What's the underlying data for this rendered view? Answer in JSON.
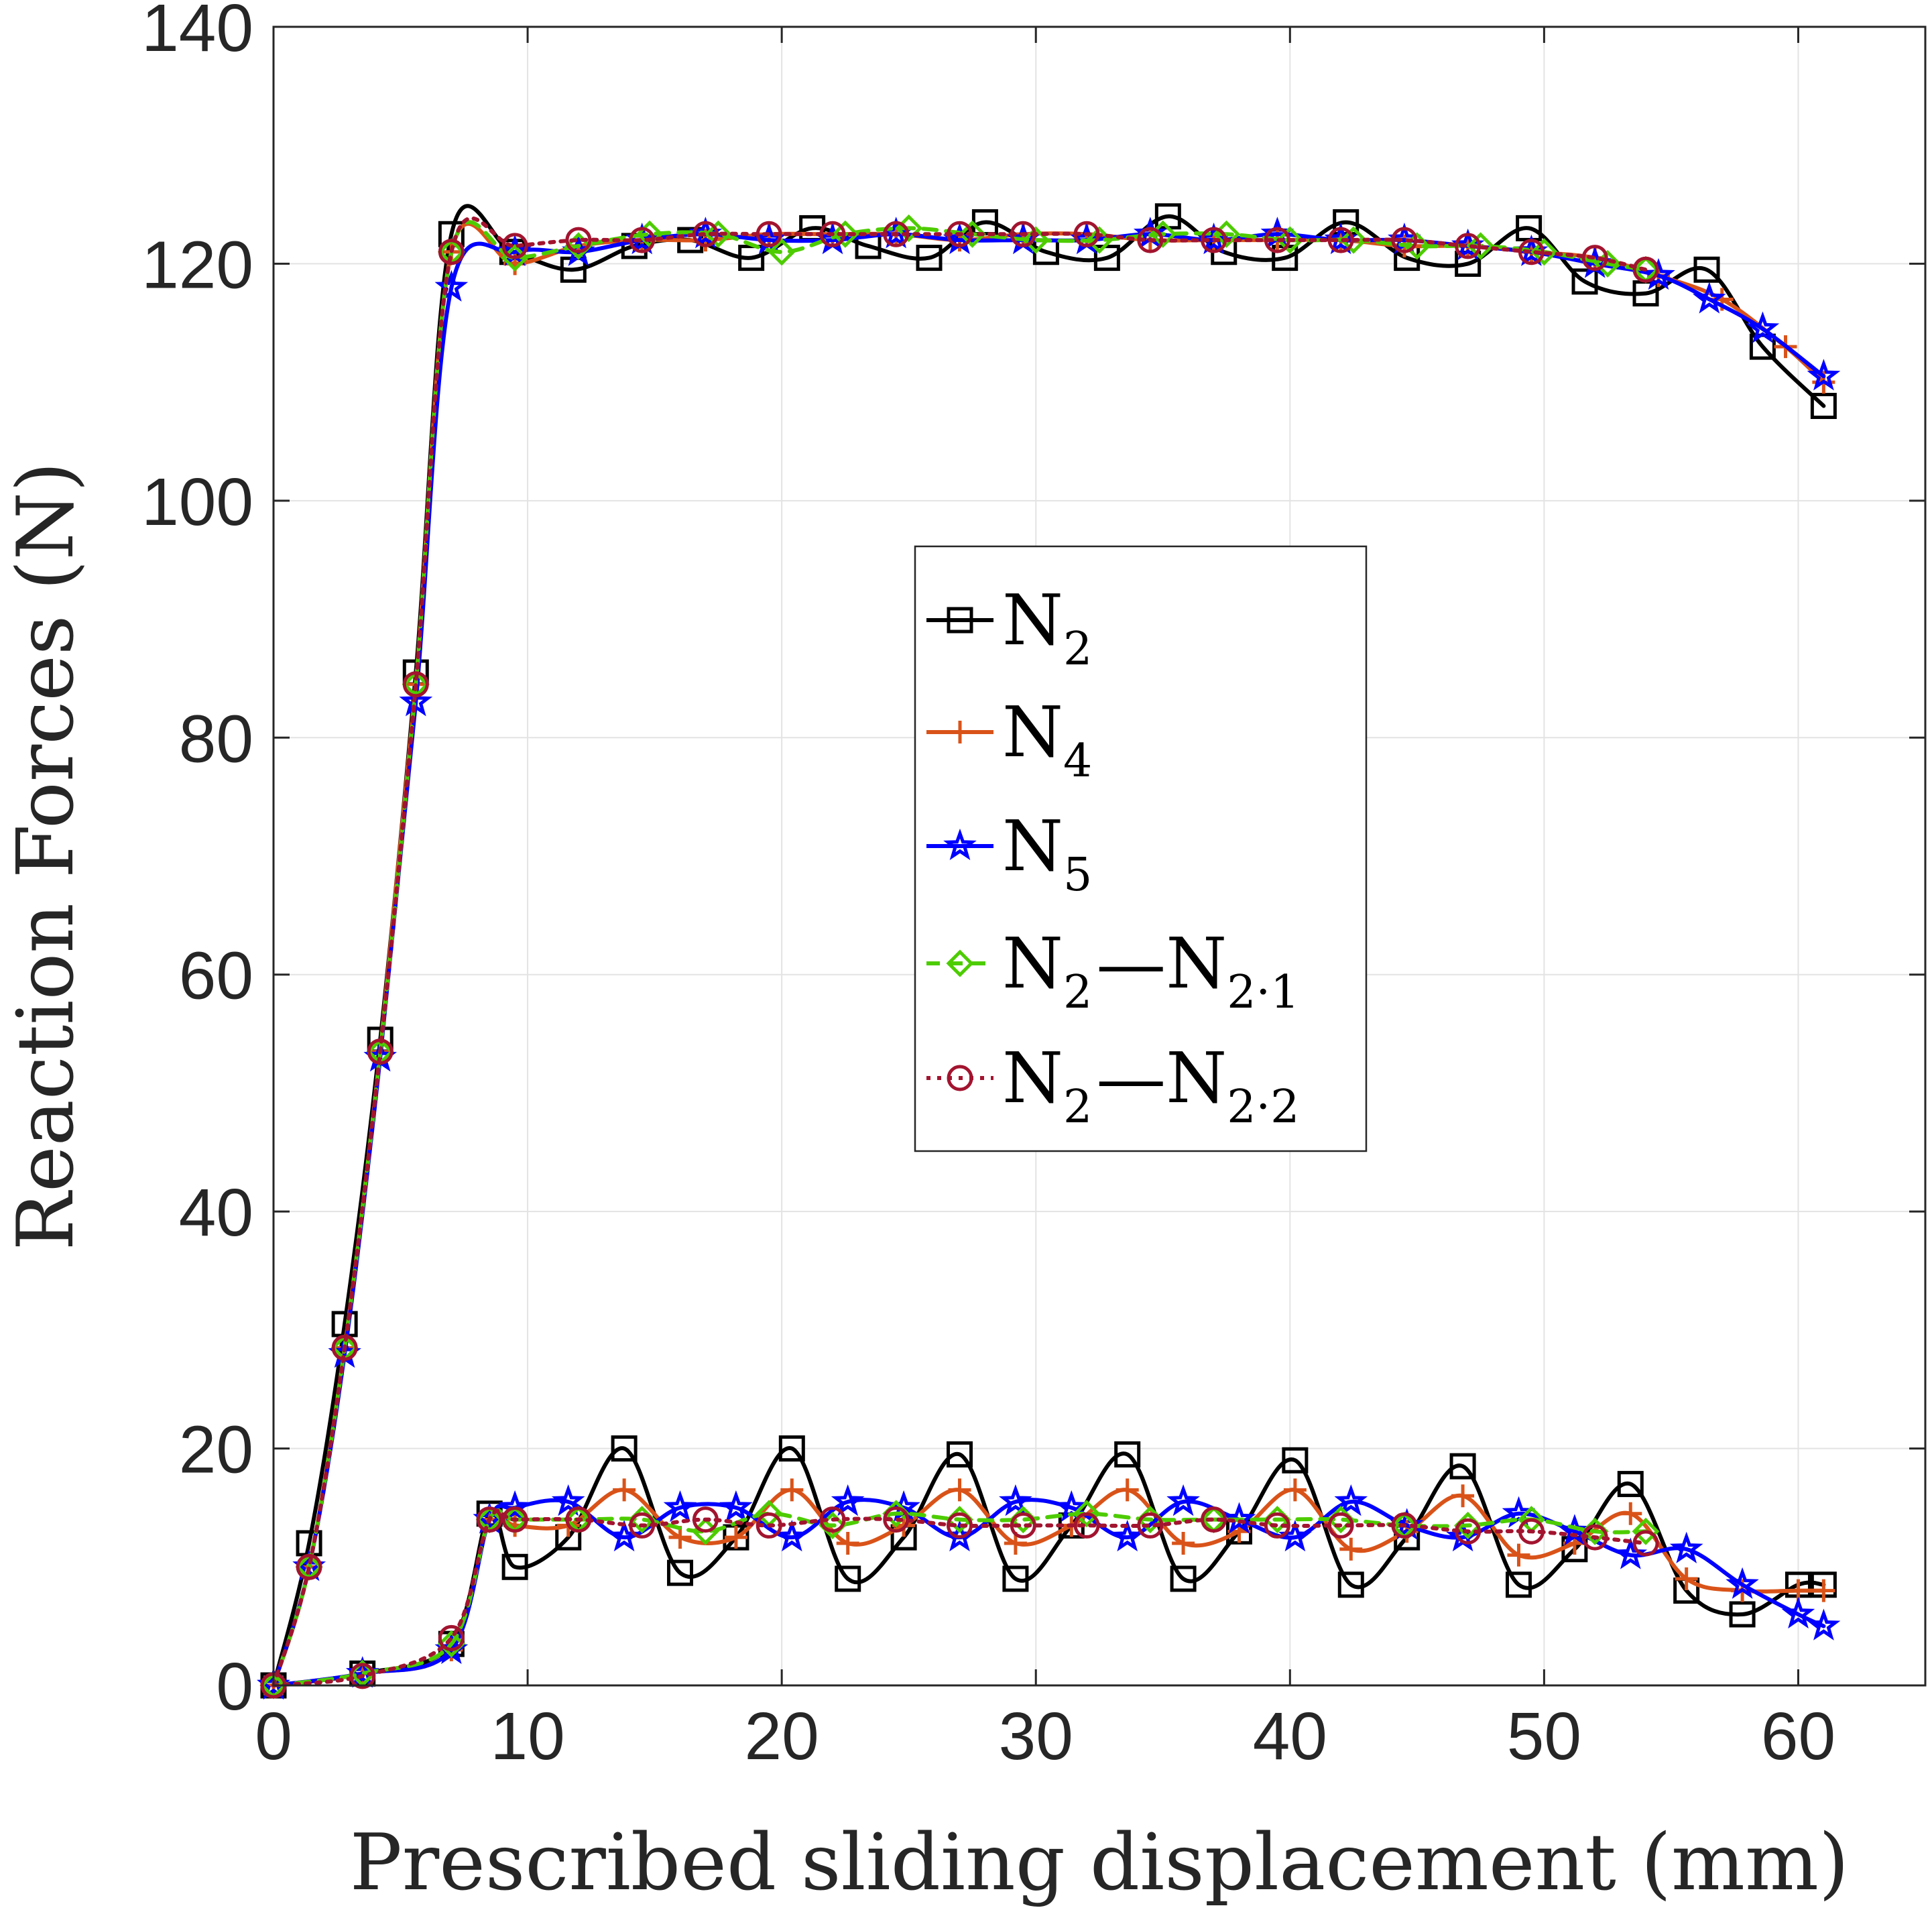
{
  "chart_data": {
    "type": "line",
    "title": "",
    "xlabel": "Prescribed sliding displacement (mm)",
    "ylabel": "Reaction Forces (N)",
    "xlim": [
      0,
      65
    ],
    "ylim": [
      0,
      140
    ],
    "xticks": [
      "0",
      "10",
      "20",
      "30",
      "40",
      "50",
      "60"
    ],
    "yticks": [
      "0",
      "20",
      "40",
      "60",
      "80",
      "100",
      "120",
      "140"
    ],
    "grid": true,
    "legend_position": "center",
    "series": [
      {
        "name": "N2",
        "label_main": "N",
        "label_sub": "2",
        "label_rest": "",
        "color": "#000000",
        "marker": "square",
        "dash": "",
        "upper": {
          "x": [
            0,
            1.4,
            2.8,
            4.2,
            5.6,
            7.0,
            9.4,
            11.8,
            14.2,
            16.4,
            18.8,
            21.2,
            23.4,
            25.8,
            28.0,
            30.4,
            32.8,
            35.2,
            37.4,
            39.8,
            42.2,
            44.6,
            47.0,
            49.4,
            51.6,
            54.0,
            56.4,
            58.6,
            61.0
          ],
          "y": [
            0,
            12,
            30.5,
            54.5,
            85.5,
            122.5,
            121,
            119.5,
            121.5,
            122,
            120.5,
            123,
            121.5,
            120.5,
            123.5,
            121,
            120.5,
            124,
            121,
            120.5,
            123.5,
            120.5,
            120,
            123,
            118.5,
            117.5,
            119.5,
            113,
            108
          ]
        },
        "lower": {
          "x": [
            0,
            3.5,
            7.0,
            8.5,
            9.5,
            11.6,
            13.8,
            16.0,
            18.2,
            20.4,
            22.6,
            24.8,
            27.0,
            29.2,
            31.4,
            33.6,
            35.8,
            38.0,
            40.2,
            42.4,
            44.6,
            46.8,
            49.0,
            51.2,
            53.4,
            55.6,
            57.8,
            60.0,
            61.0
          ],
          "y": [
            0,
            1,
            3.5,
            14.5,
            10,
            12.5,
            20,
            9.5,
            12.5,
            20,
            9,
            12.5,
            19.5,
            9,
            13.5,
            19.5,
            9,
            13,
            19,
            8.5,
            12.5,
            18.5,
            8.5,
            11.5,
            17,
            8,
            6,
            8.5,
            8.5
          ]
        }
      },
      {
        "name": "N4",
        "label_main": "N",
        "label_sub": "4",
        "label_rest": "",
        "color": "#D95319",
        "marker": "plus",
        "dash": "",
        "upper": {
          "x": [
            0,
            1.4,
            2.8,
            4.2,
            5.6,
            7.0,
            9.5,
            12.0,
            14.5,
            17.0,
            19.5,
            22.0,
            24.5,
            27.0,
            29.5,
            32.0,
            34.5,
            37.0,
            39.5,
            42.0,
            44.5,
            47.0,
            49.5,
            52.0,
            54.5,
            57.0,
            59.5,
            61.0
          ],
          "y": [
            0,
            10,
            28.5,
            53.5,
            84.5,
            121,
            120,
            121.5,
            122,
            122,
            122.5,
            122.5,
            122.5,
            122,
            122.5,
            122.5,
            122,
            122,
            122,
            122,
            121.5,
            121.5,
            121,
            120.5,
            119,
            117,
            113,
            110
          ]
        },
        "lower": {
          "x": [
            0,
            3.5,
            7.0,
            8.5,
            9.5,
            11.6,
            13.8,
            16.0,
            18.2,
            20.4,
            22.6,
            24.8,
            27.0,
            29.2,
            31.4,
            33.6,
            35.8,
            38.0,
            40.2,
            42.4,
            44.6,
            46.8,
            49.0,
            51.2,
            53.4,
            55.6,
            57.8,
            60.0,
            61.0
          ],
          "y": [
            0,
            1,
            3,
            14,
            13.5,
            13.5,
            16.5,
            12.5,
            12.5,
            16.5,
            12,
            13.5,
            16.5,
            12,
            13.5,
            16.5,
            12,
            13,
            16.5,
            11.5,
            13,
            16,
            11,
            12,
            14.5,
            9,
            8,
            8,
            8
          ]
        }
      },
      {
        "name": "N5",
        "label_main": "N",
        "label_sub": "5",
        "label_rest": "",
        "color": "#0000FF",
        "marker": "star",
        "dash": "",
        "upper": {
          "x": [
            0,
            1.4,
            2.8,
            4.2,
            5.6,
            7.0,
            9.5,
            12.0,
            14.5,
            17.0,
            19.5,
            22.0,
            24.5,
            27.0,
            29.5,
            32.0,
            34.5,
            37.0,
            39.5,
            42.0,
            44.5,
            47.0,
            49.5,
            52.0,
            54.5,
            56.5,
            58.6,
            61.0
          ],
          "y": [
            0,
            10,
            28,
            53,
            83,
            118,
            121,
            121,
            122,
            122.5,
            122,
            122,
            122.5,
            122,
            122,
            122,
            122.5,
            122,
            122.5,
            122,
            122,
            121.5,
            121,
            120,
            119,
            117,
            114.5,
            110.5
          ]
        },
        "lower": {
          "x": [
            0,
            3.5,
            7.0,
            8.5,
            9.5,
            11.6,
            13.8,
            16.0,
            18.2,
            20.4,
            22.6,
            24.8,
            27.0,
            29.2,
            31.4,
            33.6,
            35.8,
            38.0,
            40.2,
            42.4,
            44.6,
            46.8,
            49.0,
            51.2,
            53.4,
            55.6,
            57.8,
            60.0,
            61.0
          ],
          "y": [
            0,
            1,
            3,
            14,
            15,
            15.5,
            12.5,
            15,
            15,
            12.5,
            15.5,
            15,
            12.5,
            15.5,
            15,
            12.5,
            15.5,
            14,
            12.5,
            15.5,
            13.5,
            12.5,
            14.5,
            13,
            11,
            11.5,
            8.5,
            6,
            5
          ]
        }
      },
      {
        "name": "N2-N2.1",
        "label_main": "N",
        "label_sub": "2",
        "label_rest": "1",
        "color": "#4DCC00",
        "marker": "diamond",
        "dash": "20,14",
        "upper": {
          "x": [
            0,
            1.4,
            2.8,
            4.2,
            5.6,
            7.0,
            9.5,
            12.0,
            14.8,
            17.5,
            20.0,
            22.5,
            25.0,
            27.5,
            30.0,
            32.5,
            35.0,
            37.5,
            40.0,
            42.5,
            45.0,
            47.5,
            50.0,
            52.5,
            54.0
          ],
          "y": [
            0,
            10,
            28.5,
            53.5,
            84.5,
            121,
            120.5,
            121.5,
            122.5,
            122.5,
            121,
            122.5,
            123,
            122.5,
            122,
            122,
            122.5,
            122.5,
            122,
            122,
            121.5,
            121.5,
            121,
            120,
            119.5
          ]
        },
        "lower": {
          "x": [
            0,
            3.5,
            7.0,
            8.5,
            9.5,
            12.0,
            14.5,
            17.0,
            19.5,
            22.0,
            24.5,
            27.0,
            29.5,
            32.0,
            34.5,
            37.0,
            39.5,
            42.0,
            44.5,
            47.0,
            49.5,
            52.0,
            54.0
          ],
          "y": [
            0,
            1,
            3.5,
            14,
            14,
            14,
            14,
            13,
            14.5,
            13.5,
            14.5,
            14,
            14,
            14.5,
            14,
            14,
            14,
            14,
            13.5,
            13.5,
            14,
            13,
            13
          ]
        }
      },
      {
        "name": "N2-N2.2",
        "label_main": "N",
        "label_sub": "2",
        "label_rest": "2",
        "color": "#A2142F",
        "marker": "circle",
        "dash": "6,10",
        "upper": {
          "x": [
            0,
            1.4,
            2.8,
            4.2,
            5.6,
            7.0,
            9.5,
            12.0,
            14.5,
            17.0,
            19.5,
            22.0,
            24.5,
            27.0,
            29.5,
            32.0,
            34.5,
            37.0,
            39.5,
            42.0,
            44.5,
            47.0,
            49.5,
            52.0,
            54.0
          ],
          "y": [
            0,
            10,
            28.5,
            53.5,
            84.5,
            121,
            121.5,
            122,
            122,
            122.5,
            122.5,
            122.5,
            122.5,
            122.5,
            122.5,
            122.5,
            122,
            122,
            122,
            122,
            122,
            121.5,
            121,
            120.5,
            119.5
          ]
        },
        "lower": {
          "x": [
            0,
            3.5,
            7.0,
            8.5,
            9.5,
            12.0,
            14.5,
            17.0,
            19.5,
            22.0,
            24.5,
            27.0,
            29.5,
            32.0,
            34.5,
            37.0,
            39.5,
            42.0,
            44.5,
            47.0,
            49.5,
            52.0,
            54.0
          ],
          "y": [
            0,
            0.8,
            4,
            14,
            14,
            14,
            13.5,
            14,
            13.5,
            14,
            14,
            13.5,
            13.5,
            13.5,
            13.5,
            14,
            13.5,
            13.5,
            13.5,
            13,
            13,
            12.5,
            12
          ]
        }
      }
    ]
  }
}
